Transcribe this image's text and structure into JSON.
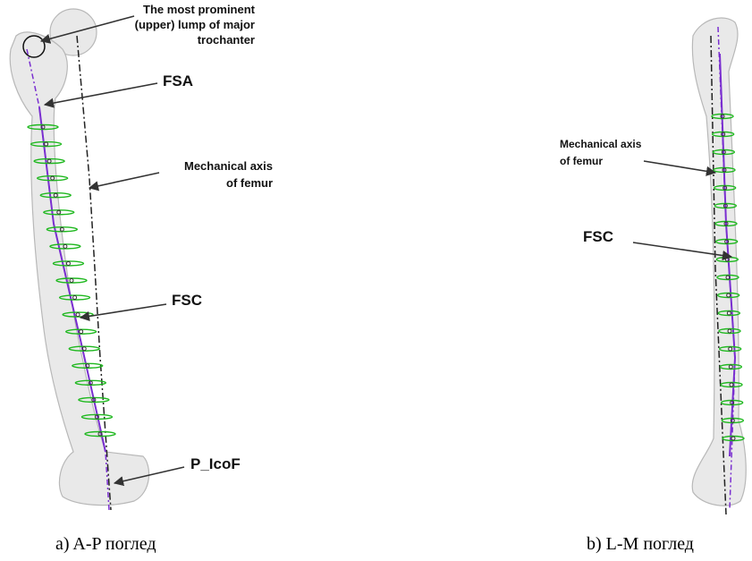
{
  "panels": [
    {
      "caption": "a) A-P поглед",
      "labels": [
        {
          "lines": [
            "The most prominent",
            "(upper) lump of major",
            "trochanter"
          ]
        },
        {
          "lines": [
            "FSA"
          ]
        },
        {
          "lines": [
            "Mechanical axis",
            "of femur"
          ]
        },
        {
          "lines": [
            "FSC"
          ]
        },
        {
          "lines": [
            "P_IcoF"
          ]
        }
      ]
    },
    {
      "caption": "b) L-M поглед",
      "labels": [
        {
          "lines": [
            "Mechanical axis",
            "of femur"
          ]
        },
        {
          "lines": [
            "FSC"
          ]
        }
      ]
    }
  ]
}
